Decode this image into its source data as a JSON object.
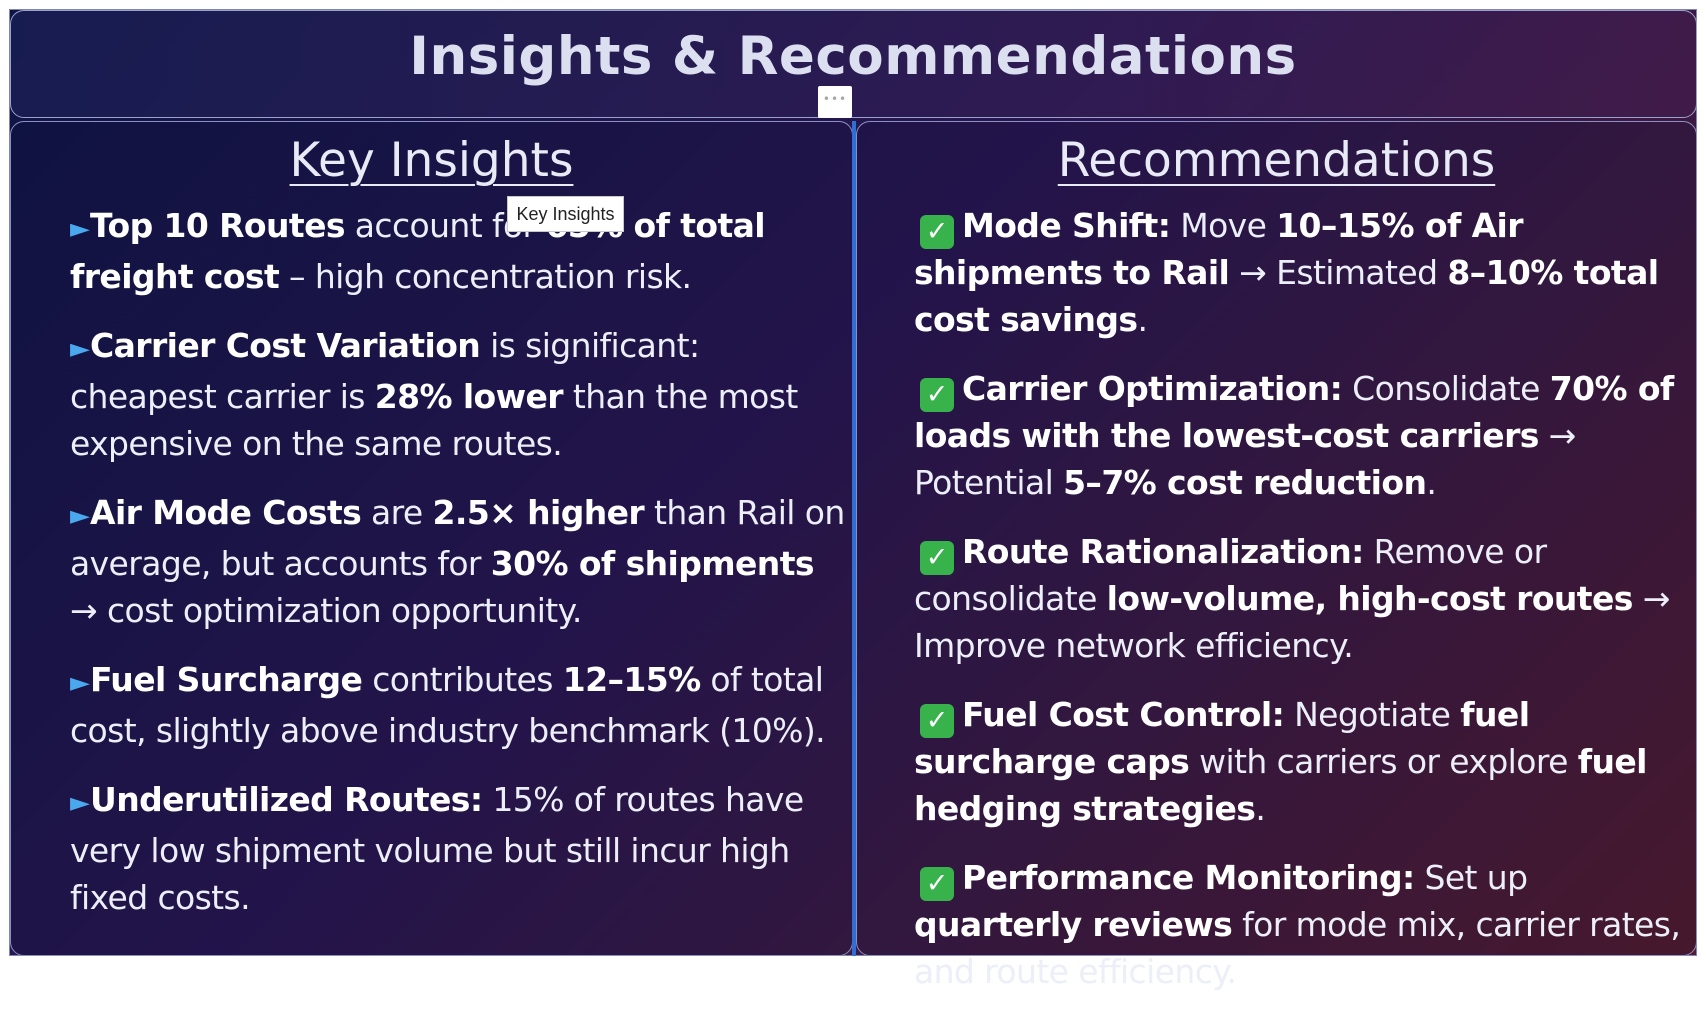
{
  "title": "Insights & Recommendations",
  "tooltip": "Key Insights",
  "left": {
    "heading": "Key Insights",
    "items": [
      [
        {
          "b": "Top 10 Routes"
        },
        {
          "t": " account for "
        },
        {
          "b": "65% of total freight cost"
        },
        {
          "t": " – high concentration risk."
        }
      ],
      [
        {
          "b": "Carrier Cost Variation"
        },
        {
          "t": " is significant: cheapest carrier is "
        },
        {
          "b": "28% lower"
        },
        {
          "t": " than the most expensive on the same routes."
        }
      ],
      [
        {
          "b": "Air Mode Costs"
        },
        {
          "t": " are "
        },
        {
          "b": "2.5× higher"
        },
        {
          "t": " than Rail on average, but accounts for "
        },
        {
          "b": "30% of shipments"
        },
        {
          "t": " → cost optimization opportunity."
        }
      ],
      [
        {
          "b": "Fuel Surcharge"
        },
        {
          "t": " contributes "
        },
        {
          "b": "12–15%"
        },
        {
          "t": " of total cost, slightly above industry benchmark (10%)."
        }
      ],
      [
        {
          "b": "Underutilized Routes:"
        },
        {
          "t": " 15% of routes have very low shipment volume but still incur high fixed costs."
        }
      ]
    ]
  },
  "right": {
    "heading": "Recommendations",
    "items": [
      [
        {
          "b": "Mode Shift:"
        },
        {
          "t": " Move "
        },
        {
          "b": "10–15% of Air shipments to Rail"
        },
        {
          "t": " → Estimated "
        },
        {
          "b": "8–10% total cost savings"
        },
        {
          "t": "."
        }
      ],
      [
        {
          "b": "Carrier Optimization:"
        },
        {
          "t": " Consolidate "
        },
        {
          "b": "70% of loads with the lowest-cost carriers"
        },
        {
          "t": " → Potential "
        },
        {
          "b": "5–7% cost reduction"
        },
        {
          "t": "."
        }
      ],
      [
        {
          "b": "Route Rationalization:"
        },
        {
          "t": " Remove or consolidate "
        },
        {
          "b": "low-volume, high-cost routes"
        },
        {
          "t": " → Improve network efficiency."
        }
      ],
      [
        {
          "b": "Fuel Cost Control:"
        },
        {
          "t": " Negotiate "
        },
        {
          "b": "fuel surcharge caps"
        },
        {
          "t": " with carriers or explore "
        },
        {
          "b": "fuel hedging strategies"
        },
        {
          "t": "."
        }
      ],
      [
        {
          "b": "Performance Monitoring:"
        },
        {
          "t": " Set up "
        },
        {
          "b": "quarterly reviews"
        },
        {
          "t": " for mode mix, carrier rates, and route efficiency."
        }
      ]
    ]
  },
  "icons": {
    "insight_bullet": "arrow-bullet-icon",
    "recommendation_bullet": "check-mark-icon"
  },
  "colors": {
    "accent": "#2f6fd4",
    "check": "#38b24a",
    "bullet": "#4aa8ee"
  }
}
